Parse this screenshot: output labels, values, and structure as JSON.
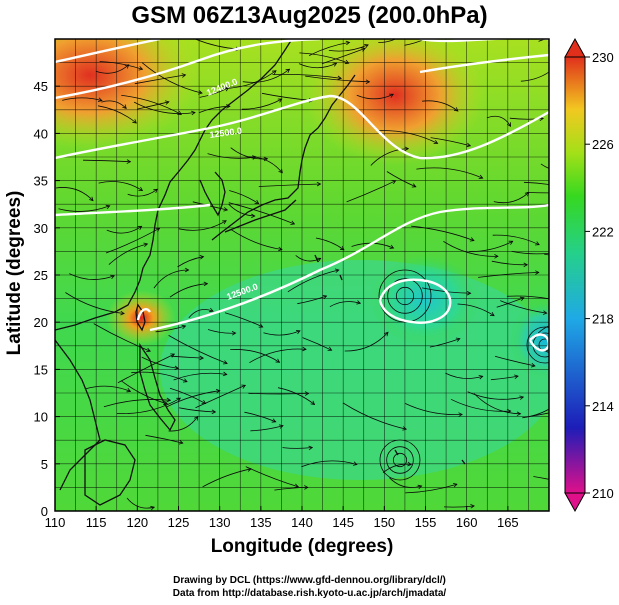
{
  "title": "GSM 06Z13Aug2025 (200.0hPa)",
  "xlabel": "Longitude (degrees)",
  "ylabel": "Latitude  (degrees)",
  "credits": {
    "line1": "Drawing by DCL (https://www.gfd-dennou.org/library/dcl/)",
    "line2": "Data from http://database.rish.kyoto-u.ac.jp/arch/jmadata/"
  },
  "chart_data": {
    "type": "heatmap",
    "description_fields": [
      "temperature shading",
      "geopotential height contours",
      "wind streamlines"
    ],
    "xlim": [
      110,
      170
    ],
    "ylim": [
      0,
      50
    ],
    "x_ticks": [
      110,
      115,
      120,
      125,
      130,
      135,
      140,
      145,
      150,
      155,
      160,
      165
    ],
    "y_ticks": [
      0,
      5,
      10,
      15,
      20,
      25,
      30,
      35,
      40,
      45
    ],
    "grid": true,
    "colorbar": {
      "ticks": [
        210,
        214,
        218,
        222,
        226,
        230
      ],
      "min": 210,
      "max": 230,
      "colors": [
        "#e0108a",
        "#1d1db8",
        "#1fa9e6",
        "#25d08a",
        "#36d820",
        "#a3e018",
        "#f2c820",
        "#e0301c"
      ]
    },
    "contour_labels": [
      "12400.0",
      "12500.0",
      "12500.0"
    ],
    "temperature_regions": [
      {
        "name": "warm-northwest",
        "lon": 114,
        "lat": 46,
        "value": 229
      },
      {
        "name": "warm-north-central",
        "lon": 152,
        "lat": 43,
        "value": 229
      },
      {
        "name": "warm-taiwan",
        "lon": 120.5,
        "lat": 22,
        "value": 230
      },
      {
        "name": "cool-west-pacific",
        "lon": 153,
        "lat": 22,
        "value": 219
      },
      {
        "name": "cool-east",
        "lon": 168,
        "lat": 20,
        "value": 218
      }
    ]
  }
}
